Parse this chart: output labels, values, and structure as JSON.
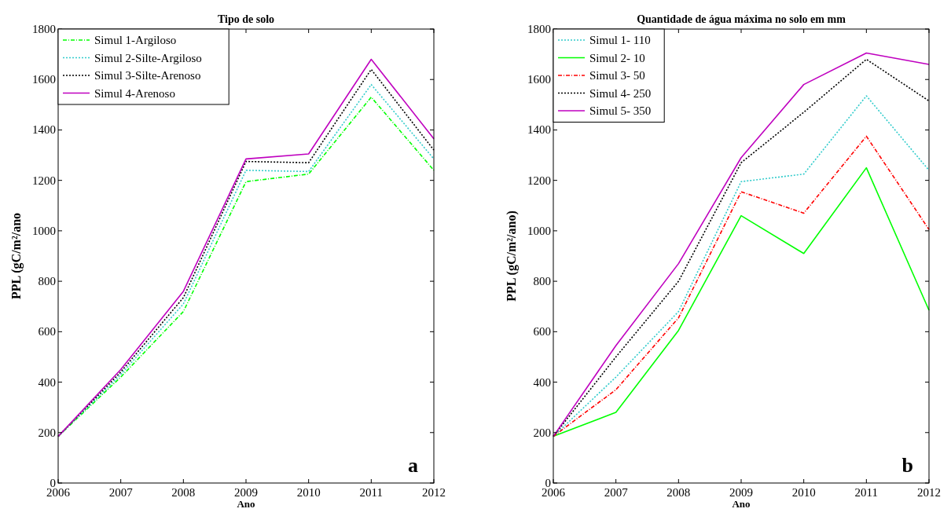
{
  "chart_data": [
    {
      "type": "line",
      "title": "Tipo de solo",
      "xlabel": "Ano",
      "ylabel": "PPL (gC/m²/ano",
      "annotations": [
        "a"
      ],
      "x": [
        2006,
        2007,
        2008,
        2009,
        2010,
        2011,
        2012
      ],
      "xlim": [
        2006,
        2012
      ],
      "xticks": [
        2006,
        2007,
        2008,
        2009,
        2010,
        2011,
        2012
      ],
      "ylim": [
        0,
        1800
      ],
      "yticks": [
        0,
        200,
        400,
        600,
        800,
        1000,
        1200,
        1400,
        1600,
        1800
      ],
      "legend": "top left",
      "grid": false,
      "series": [
        {
          "name": "Simul 1-Argiloso",
          "color": "#00ff00",
          "line_style": "dashed",
          "values": [
            185,
            420,
            680,
            1195,
            1225,
            1530,
            1240
          ]
        },
        {
          "name": "Simul 2-Silte-Argiloso",
          "color": "#33cccc",
          "line_style": "dotted",
          "values": [
            185,
            430,
            710,
            1240,
            1235,
            1580,
            1285
          ]
        },
        {
          "name": "Simul 3-Silte-Arenoso",
          "color": "#000000",
          "line_style": "dotted",
          "values": [
            185,
            440,
            735,
            1275,
            1270,
            1640,
            1320
          ]
        },
        {
          "name": "Simul 4-Arenoso",
          "color": "#bf00bf",
          "line_style": "solid",
          "values": [
            185,
            450,
            760,
            1285,
            1305,
            1680,
            1365
          ]
        }
      ]
    },
    {
      "type": "line",
      "title": "Quantidade de água máxima no solo em mm",
      "xlabel": "Ano",
      "ylabel": "PPL (gC/m²/ano)",
      "annotations": [
        "b"
      ],
      "x": [
        2006,
        2007,
        2008,
        2009,
        2010,
        2011,
        2012
      ],
      "xlim": [
        2006,
        2012
      ],
      "xticks": [
        2006,
        2007,
        2008,
        2009,
        2010,
        2011,
        2012
      ],
      "ylim": [
        0,
        1800
      ],
      "yticks": [
        0,
        200,
        400,
        600,
        800,
        1000,
        1200,
        1400,
        1600,
        1800
      ],
      "legend": "top left",
      "grid": false,
      "series": [
        {
          "name": "Simul 1- 110",
          "color": "#33cccc",
          "line_style": "dotted",
          "values": [
            185,
            420,
            680,
            1195,
            1225,
            1535,
            1240
          ]
        },
        {
          "name": "Simul 2- 10",
          "color": "#00ff00",
          "line_style": "solid",
          "values": [
            185,
            280,
            605,
            1060,
            910,
            1250,
            685
          ]
        },
        {
          "name": "Simul 3- 50",
          "color": "#ff0000",
          "line_style": "dashed",
          "values": [
            185,
            370,
            655,
            1155,
            1070,
            1375,
            1005
          ]
        },
        {
          "name": "Simul 4- 250",
          "color": "#000000",
          "line_style": "dotted",
          "values": [
            185,
            500,
            800,
            1270,
            1470,
            1680,
            1515
          ]
        },
        {
          "name": "Simul 5- 350",
          "color": "#bf00bf",
          "line_style": "solid",
          "values": [
            185,
            545,
            870,
            1290,
            1580,
            1705,
            1660
          ]
        }
      ]
    }
  ]
}
